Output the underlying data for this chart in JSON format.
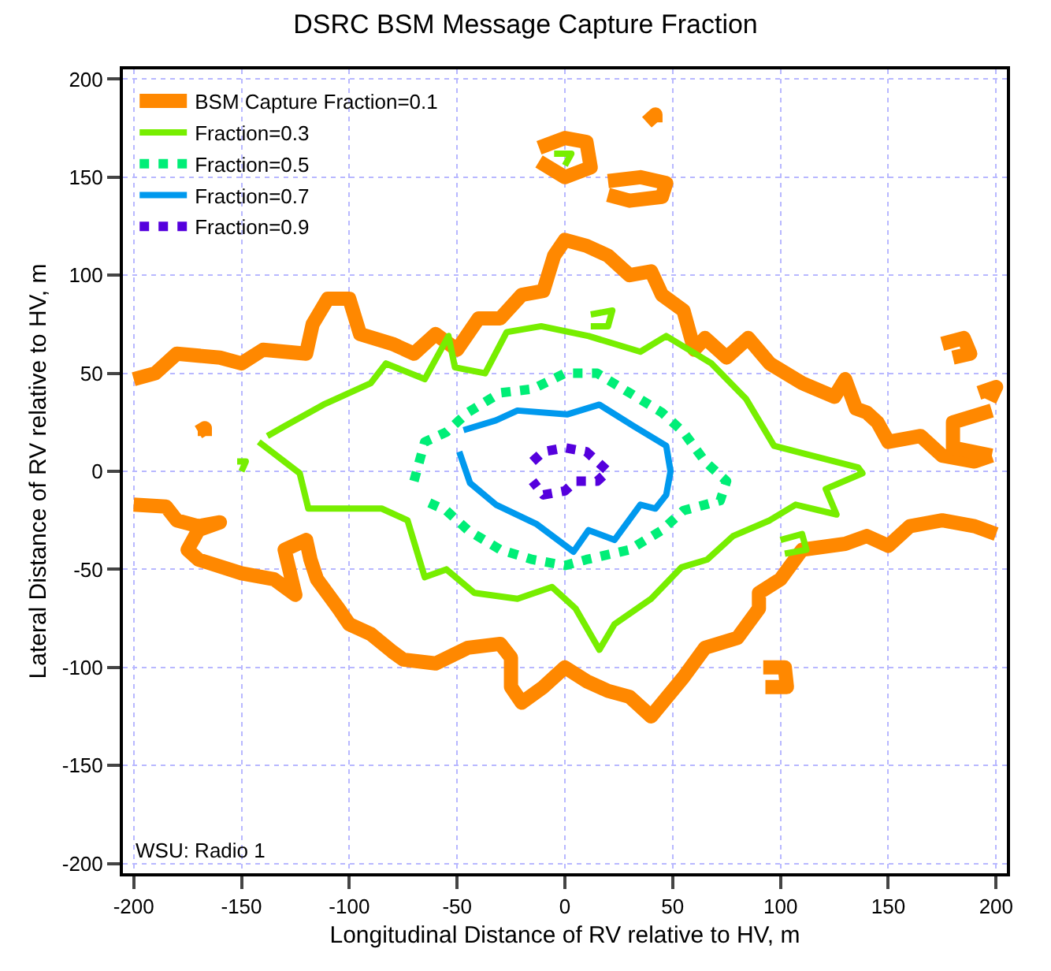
{
  "chart_data": {
    "type": "line",
    "title": "DSRC BSM Message Capture Fraction",
    "xlabel": "Longitudinal Distance of RV relative to HV, m",
    "ylabel": "Lateral Distance of RV relative to HV, m",
    "xlim": [
      -205,
      205
    ],
    "ylim": [
      -205,
      205
    ],
    "xticks": [
      -200,
      -150,
      -100,
      -50,
      0,
      50,
      100,
      150,
      200
    ],
    "yticks": [
      -200,
      -150,
      -100,
      -50,
      0,
      50,
      100,
      150,
      200
    ],
    "grid": true,
    "legend": "top left",
    "marker": "none",
    "line_style": "solid",
    "annotations": [
      "WSU: Radio 1"
    ],
    "series": [
      {
        "name": "BSM Capture Fraction=0.1",
        "color": "#ff8800",
        "x": [
          -200,
          -190,
          -180,
          -160,
          -150,
          -140,
          -120,
          -117,
          -110,
          -100,
          -95,
          -80,
          -70,
          -60,
          -50,
          -40,
          -30,
          -20,
          -10,
          -5,
          0,
          10,
          20,
          30,
          40,
          45,
          55,
          60,
          65,
          75,
          85,
          95,
          110,
          125,
          130,
          135,
          140,
          145,
          150,
          165,
          175,
          190,
          198
        ],
        "values": [
          47,
          50,
          60,
          58,
          55,
          62,
          60,
          75,
          88,
          88,
          70,
          65,
          60,
          70,
          62,
          78,
          78,
          90,
          92,
          110,
          118,
          115,
          110,
          100,
          102,
          90,
          82,
          62,
          68,
          58,
          68,
          55,
          45,
          38,
          47,
          32,
          30,
          25,
          15,
          18,
          8,
          5,
          8
        ]
      },
      {
        "name": "Fraction=0.3",
        "color": "#77ee00",
        "line_style": "solid",
        "x": [
          -142,
          -123,
          -119,
          -85,
          -73,
          -65,
          -55,
          -42,
          -22,
          -6,
          5,
          16,
          23,
          40,
          54,
          66,
          78,
          95,
          107,
          126,
          121,
          138,
          136,
          97,
          84,
          68,
          47,
          35,
          11,
          -11,
          -27,
          -37,
          -51,
          -54,
          -65,
          -83,
          -90,
          -112,
          -130,
          -138
        ],
        "values": [
          15,
          -1,
          -19,
          -19,
          -25,
          -54,
          -50,
          -62,
          -65,
          -59,
          -70,
          -91,
          -78,
          -65,
          -49,
          -45,
          -33,
          -25,
          -17,
          -22,
          -9,
          -1,
          2,
          13,
          37,
          55,
          69,
          61,
          69,
          74,
          71,
          50,
          53,
          69,
          47,
          55,
          45,
          34,
          23,
          18
        ]
      },
      {
        "name": "Fraction=0.5",
        "color": "#00ee77",
        "line_style": "dotted",
        "x": [
          -70,
          -65,
          -55,
          -45,
          -30,
          -15,
          0,
          15,
          30,
          45,
          55,
          65,
          75,
          72,
          55,
          45,
          30,
          10,
          0,
          -15,
          -30,
          -45,
          -55,
          -65
        ],
        "values": [
          -5,
          15,
          20,
          30,
          40,
          42,
          50,
          50,
          40,
          30,
          20,
          5,
          -5,
          -15,
          -20,
          -30,
          -40,
          -45,
          -48,
          -45,
          -40,
          -30,
          -20,
          -15
        ]
      },
      {
        "name": "Fraction=0.7",
        "color": "#0099ee",
        "line_style": "solid",
        "x": [
          -47,
          -32,
          -22,
          1,
          16,
          32,
          47,
          49,
          47,
          42,
          35,
          23,
          11,
          4,
          -13,
          -32,
          -44,
          -49
        ],
        "values": [
          21,
          26,
          31,
          29,
          34,
          23,
          13,
          0,
          -12,
          -19,
          -17,
          -35,
          -30,
          -41,
          -27,
          -17,
          -6,
          10
        ]
      },
      {
        "name": "Fraction=0.9",
        "color": "#5500dd",
        "line_style": "dotted",
        "x": [
          -15,
          -10,
          0,
          10,
          15,
          20,
          15,
          5,
          0,
          -10,
          -15
        ],
        "values": [
          5,
          10,
          12,
          10,
          5,
          0,
          -5,
          -5,
          -10,
          -12,
          -5
        ]
      },
      {
        "color": "#ff8800",
        "x": [
          198,
          180,
          180,
          198
        ],
        "values": [
          31,
          25,
          12,
          8
        ]
      },
      {
        "color": "#ff8800",
        "x": [
          -200,
          -185,
          -180,
          -170,
          -160,
          -170,
          -175,
          -170,
          -150,
          -135,
          -125,
          -130,
          -120,
          -118,
          -115,
          -105,
          -100,
          -90,
          -80,
          -75,
          -60,
          -45,
          -30,
          -25,
          -25,
          -20,
          -10,
          0,
          10,
          20,
          30,
          40,
          55,
          65,
          80,
          90,
          90,
          100,
          110,
          130,
          140,
          150,
          160,
          175,
          190,
          200
        ],
        "values": [
          -17,
          -18,
          -25,
          -28,
          -26,
          -30,
          -40,
          -45,
          -52,
          -55,
          -63,
          -40,
          -35,
          -45,
          -55,
          -70,
          -78,
          -83,
          -92,
          -96,
          -98,
          -90,
          -88,
          -95,
          -110,
          -118,
          -110,
          -100,
          -107,
          -112,
          -115,
          -125,
          -105,
          -90,
          -85,
          -70,
          -62,
          -55,
          -40,
          -37,
          -33,
          -38,
          -28,
          -25,
          -28,
          -32
        ]
      },
      {
        "color": "#ff8800",
        "x": [
          -12,
          0,
          10,
          12,
          0,
          -12
        ],
        "values": [
          165,
          170,
          168,
          155,
          150,
          158
        ]
      },
      {
        "color": "#ff8800",
        "x": [
          20,
          35,
          47,
          45,
          30,
          20
        ],
        "values": [
          148,
          150,
          147,
          140,
          138,
          141
        ]
      },
      {
        "color": "#ff8800",
        "x": [
          38,
          42,
          42
        ],
        "values": [
          178,
          182,
          178
        ]
      },
      {
        "color": "#ff8800",
        "x": [
          175,
          185,
          188,
          180
        ],
        "values": [
          65,
          68,
          60,
          58
        ]
      },
      {
        "color": "#ff8800",
        "x": [
          192,
          200,
          197
        ],
        "values": [
          40,
          43,
          36
        ]
      },
      {
        "color": "#ff8800",
        "x": [
          92,
          102,
          103,
          93
        ],
        "values": [
          -100,
          -100,
          -110,
          -110
        ]
      },
      {
        "color": "#ff8800",
        "x": [
          -170,
          -167,
          -167
        ],
        "values": [
          20,
          22,
          18
        ]
      },
      {
        "color": "#77ee00",
        "x": [
          -152,
          -148,
          -150
        ],
        "values": [
          5,
          5,
          0
        ]
      },
      {
        "color": "#77ee00",
        "x": [
          100,
          110,
          112,
          102
        ],
        "values": [
          -35,
          -32,
          -40,
          -42
        ]
      },
      {
        "color": "#77ee00",
        "x": [
          12,
          22,
          20,
          12
        ],
        "values": [
          80,
          82,
          74,
          74
        ]
      },
      {
        "color": "#77ee00",
        "x": [
          -5,
          3,
          0
        ],
        "values": [
          162,
          162,
          156
        ]
      }
    ]
  }
}
